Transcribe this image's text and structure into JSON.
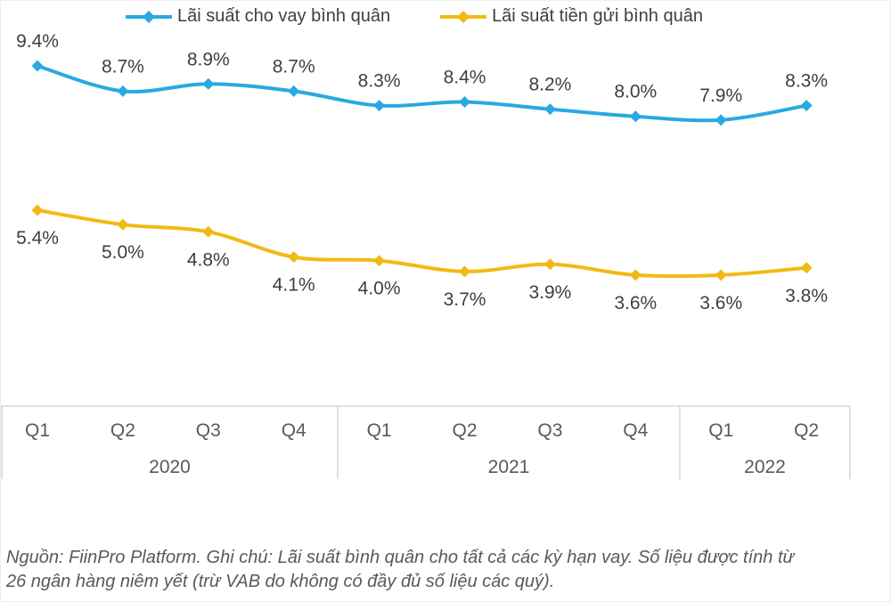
{
  "chart_data": {
    "type": "line",
    "categories": [
      "Q1",
      "Q2",
      "Q3",
      "Q4",
      "Q1",
      "Q2",
      "Q3",
      "Q4",
      "Q1",
      "Q2"
    ],
    "year_groups": [
      {
        "label": "2020",
        "count": 4
      },
      {
        "label": "2021",
        "count": 4
      },
      {
        "label": "2022",
        "count": 2
      }
    ],
    "series": [
      {
        "name": "Lãi suất cho vay bình quân",
        "color": "#29a9e1",
        "values": [
          9.4,
          8.7,
          8.9,
          8.7,
          8.3,
          8.4,
          8.2,
          8.0,
          7.9,
          8.3
        ],
        "labels": [
          "9.4%",
          "8.7%",
          "8.9%",
          "8.7%",
          "8.3%",
          "8.4%",
          "8.2%",
          "8.0%",
          "7.9%",
          "8.3%"
        ],
        "label_position": "above"
      },
      {
        "name": "Lãi suất tiền gửi bình quân",
        "color": "#f1ba13",
        "values": [
          5.4,
          5.0,
          4.8,
          4.1,
          4.0,
          3.7,
          3.9,
          3.6,
          3.6,
          3.8
        ],
        "labels": [
          "5.4%",
          "5.0%",
          "4.8%",
          "4.1%",
          "4.0%",
          "3.7%",
          "3.9%",
          "3.6%",
          "3.6%",
          "3.8%"
        ],
        "label_position": "below"
      }
    ],
    "title": "",
    "xlabel": "",
    "ylabel": "",
    "ylim": [
      3.0,
      10.0
    ],
    "grid": false,
    "legend_position": "top",
    "marker_shape": "diamond"
  },
  "footer": {
    "lines": [
      "Nguồn: FiinPro Platform. Ghi chú: Lãi suất bình quân cho tất cả các kỳ hạn vay. Số liệu được tính từ",
      "26 ngân hàng niêm yết (trừ VAB do không có đầy đủ số liệu các quý)."
    ]
  }
}
